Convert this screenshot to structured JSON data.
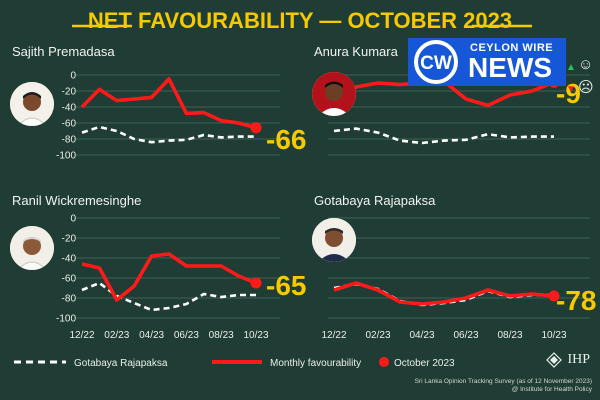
{
  "title": "NET FAVOURABILITY — OCTOBER 2023",
  "logo": {
    "name": "CEYLON WIRE",
    "tagline": "NEWS",
    "mark": "CW"
  },
  "colors": {
    "background": "#1f3d34",
    "title": "#f6c900",
    "monthly": "#ff1a1a",
    "benchmark": "#ffffff",
    "final_value": "#f6c900",
    "up_arrow": "#22c55e",
    "down_arrow": "#ff1a1a"
  },
  "chart_data": [
    {
      "type": "line",
      "title": "Sajith Premadasa",
      "ylim": [
        -100,
        0
      ],
      "yticks": [
        0,
        -20,
        -40,
        -60,
        -80,
        -100
      ],
      "x": [
        "12/22",
        "01/23",
        "02/23",
        "03/23",
        "04/23",
        "05/23",
        "06/23",
        "07/23",
        "08/23",
        "09/23",
        "10/23"
      ],
      "xtick_labels": [],
      "grid": true,
      "series": [
        {
          "name": "Monthly favourability",
          "values": [
            -40,
            -18,
            -32,
            -30,
            -28,
            -5,
            -48,
            -47,
            -57,
            -60,
            -66
          ]
        },
        {
          "name": "Gotabaya Rajapaksa",
          "values": [
            -72,
            -65,
            -70,
            -80,
            -84,
            -82,
            -81,
            -75,
            -78,
            -77,
            -77
          ]
        }
      ],
      "final_value": "-66"
    },
    {
      "type": "line",
      "title": "Anura Kumara",
      "ylim": [
        -100,
        0
      ],
      "x": [
        "12/22",
        "01/23",
        "02/23",
        "03/23",
        "04/23",
        "05/23",
        "06/23",
        "07/23",
        "08/23",
        "09/23",
        "10/23"
      ],
      "grid": true,
      "series": [
        {
          "name": "Monthly favourability",
          "values": [
            -37,
            -15,
            -10,
            -12,
            -10,
            -8,
            -30,
            -38,
            -25,
            -20,
            -9
          ]
        },
        {
          "name": "Gotabaya Rajapaksa",
          "values": [
            -70,
            -67,
            -72,
            -82,
            -85,
            -82,
            -81,
            -74,
            -78,
            -77,
            -77
          ]
        }
      ],
      "final_value": "-9",
      "trend_icons": {
        "up": "▲",
        "happy": "☺",
        "down": "▼",
        "sad": "☹"
      }
    },
    {
      "type": "line",
      "title": "Ranil Wickremesinghe",
      "ylim": [
        -100,
        0
      ],
      "yticks": [
        0,
        -20,
        -40,
        -60,
        -80,
        -100
      ],
      "x": [
        "12/22",
        "01/23",
        "02/23",
        "03/23",
        "04/23",
        "05/23",
        "06/23",
        "07/23",
        "08/23",
        "09/23",
        "10/23"
      ],
      "xtick_labels": [
        "12/22",
        "02/23",
        "04/23",
        "06/23",
        "08/23",
        "10/23"
      ],
      "grid": true,
      "series": [
        {
          "name": "Monthly favourability",
          "values": [
            -46,
            -50,
            -82,
            -68,
            -38,
            -36,
            -48,
            -48,
            -48,
            -58,
            -65
          ]
        },
        {
          "name": "Gotabaya Rajapaksa",
          "values": [
            -72,
            -65,
            -78,
            -85,
            -92,
            -90,
            -86,
            -76,
            -79,
            -77,
            -77
          ]
        }
      ],
      "final_value": "-65"
    },
    {
      "type": "line",
      "title": "Gotabaya Rajapaksa",
      "ylim": [
        -100,
        0
      ],
      "x": [
        "12/22",
        "01/23",
        "02/23",
        "03/23",
        "04/23",
        "05/23",
        "06/23",
        "07/23",
        "08/23",
        "09/23",
        "10/23"
      ],
      "xtick_labels": [
        "12/22",
        "02/23",
        "04/23",
        "06/23",
        "08/23",
        "10/23"
      ],
      "grid": true,
      "series": [
        {
          "name": "Monthly favourability",
          "values": [
            -72,
            -65,
            -72,
            -84,
            -86,
            -84,
            -80,
            -72,
            -78,
            -76,
            -78
          ]
        },
        {
          "name": "Gotabaya Rajapaksa",
          "values": [
            -70,
            -66,
            -71,
            -83,
            -87,
            -85,
            -82,
            -73,
            -79,
            -77,
            -77
          ]
        }
      ],
      "final_value": "-78"
    }
  ],
  "legend": [
    {
      "label": "Gotabaya Rajapaksa",
      "style": "dashed"
    },
    {
      "label": "Monthly favourability",
      "style": "solid"
    },
    {
      "label": "October 2023",
      "style": "dot"
    }
  ],
  "source": {
    "line1": "Sri Lanka Opinion Tracking Survey (as of 12 November 2023)",
    "line2": "@ Institute for Health Policy",
    "org": "IHP"
  }
}
